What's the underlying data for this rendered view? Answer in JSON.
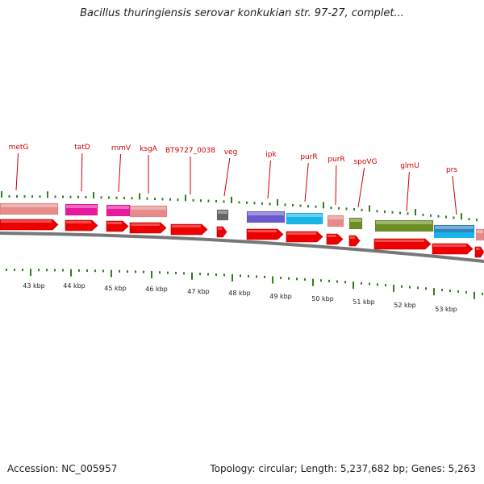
{
  "title": "Bacillus thuringiensis serovar konkukian str. 97-27, complet...",
  "footer": {
    "accession": "Accession: NC_005957",
    "summary": "Topology: circular; Length: 5,237,682 bp; Genes: 5,263"
  },
  "colors": {
    "label_red": "#cc0000",
    "tick_green": "#2e7d1e",
    "arrow_red": "#ee0000",
    "backbone_gray": "#777777"
  },
  "gene_labels": [
    "metG",
    "tatD",
    "rnmV",
    "ksgA",
    "BT9727_0038",
    "veg",
    "ipk",
    "purR",
    "purR",
    "spoVG",
    "glmU",
    "prs"
  ],
  "kbp_labels": [
    "43 kbp",
    "44 kbp",
    "45 kbp",
    "46 kbp",
    "47 kbp",
    "48 kbp",
    "49 kbp",
    "50 kbp",
    "51 kbp",
    "52 kbp",
    "53 kbp"
  ],
  "feature_colors": [
    "#e88a8a",
    "#e8199e",
    "#e8199e",
    "#e88a8a",
    "#666666",
    "#6a5acd",
    "#19b5e8",
    "#e88a8a",
    "#6b8e23",
    "#6b8e23",
    "#2e86c1",
    "#e88a8a"
  ],
  "feature_names": [
    "pink-feature",
    "magenta-feature",
    "magenta-feature",
    "pink-feature",
    "gray-feature",
    "purple-feature",
    "cyan-feature",
    "pink-feature",
    "olive-feature",
    "olive-feature",
    "blue-feature",
    "pink-feature"
  ]
}
